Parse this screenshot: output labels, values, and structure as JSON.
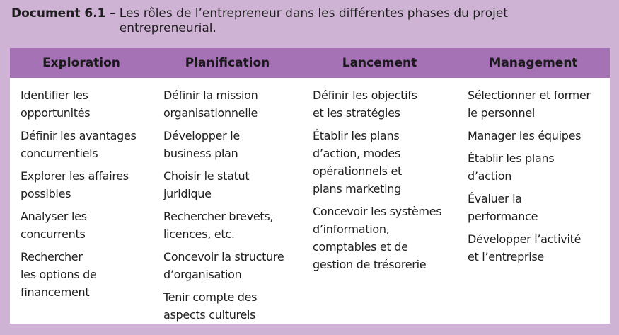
{
  "caption": {
    "label": "Document 6.1",
    "dash": " – ",
    "text": "Les rôles de l’entrepreneur dans les différentes phases du projet entrepreneurial."
  },
  "columns": [
    {
      "header": "Exploration",
      "items": [
        [
          "Identifier les",
          "opportunités"
        ],
        [
          "Définir les avantages",
          "concurrentiels"
        ],
        [
          "Explorer les affaires",
          "possibles"
        ],
        [
          "Analyser les",
          "concurrents"
        ],
        [
          "Rechercher",
          "les options de",
          "financement"
        ]
      ]
    },
    {
      "header": "Planification",
      "items": [
        [
          "Définir la mission",
          "organisationnelle"
        ],
        [
          "Développer le",
          "business plan"
        ],
        [
          "Choisir le statut",
          "juridique"
        ],
        [
          "Rechercher brevets,",
          "licences, etc."
        ],
        [
          "Concevoir la structure",
          "d’organisation"
        ],
        [
          "Tenir compte des",
          "aspects culturels"
        ]
      ]
    },
    {
      "header": "Lancement",
      "items": [
        [
          "Définir les objectifs",
          "et les stratégies"
        ],
        [
          "Établir les plans",
          "d’action, modes",
          "opérationnels et",
          "plans marketing"
        ],
        [
          "Concevoir les systèmes",
          "d’information,",
          "comptables et de",
          "gestion de trésorerie"
        ]
      ]
    },
    {
      "header": "Management",
      "items": [
        [
          "Sélectionner et former",
          "le personnel"
        ],
        [
          "Manager les équipes"
        ],
        [
          "Établir les plans",
          "d’action"
        ],
        [
          "Évaluer la",
          "performance"
        ],
        [
          "Développer l’activité",
          "et l’entreprise"
        ]
      ]
    }
  ]
}
